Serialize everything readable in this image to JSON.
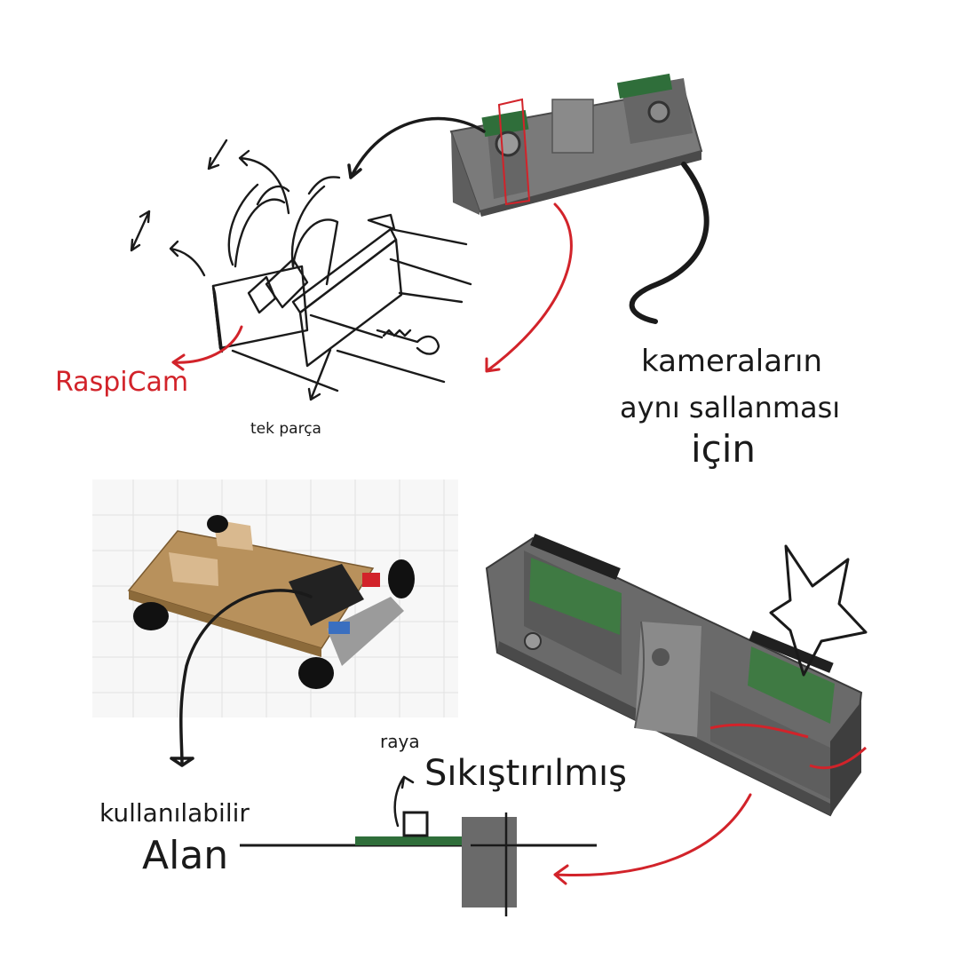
{
  "labels": {
    "raspicam": "RaspiCam",
    "tek_parca": "tek parça",
    "kamera_line1": "kameraların",
    "kamera_line2": "aynı sallanması",
    "kamera_line3": "için",
    "kullanilabilir": "kullanılabilir",
    "alan": "Alan",
    "raya": "raya",
    "sikistirilmis": "Sıkıştırılmış"
  },
  "colors": {
    "ink": "#1a1a1a",
    "red": "#d2232a",
    "body_gray": "#6f6f6f",
    "body_dark": "#4a4a4a",
    "pcb_green": "#2f6e3a",
    "wood": "#b8915c"
  },
  "icons": {
    "arrows": "hand-drawn-arrows",
    "star": "star-outline",
    "screw": "screw"
  }
}
